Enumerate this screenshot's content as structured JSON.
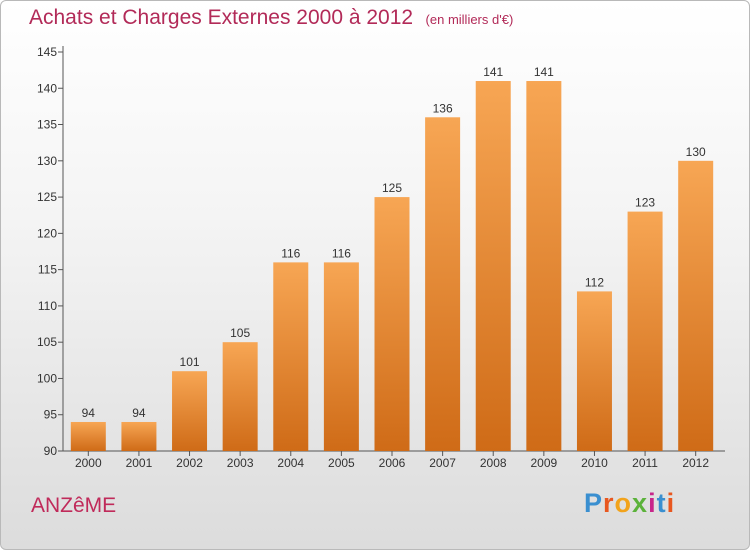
{
  "header": {
    "title": "Achats et Charges Externes 2000 à 2012",
    "unit": "(en milliers d'€)"
  },
  "commune": "ANZêME",
  "logo": {
    "letters": [
      "P",
      "r",
      "o",
      "x",
      "i",
      "t",
      "i"
    ],
    "colors": [
      "#3a8fd0",
      "#e8571f",
      "#f2a31b",
      "#5bb23a",
      "#c8258a",
      "#3a8fd0",
      "#e8571f"
    ]
  },
  "colors": {
    "bar_light": "#f7a654",
    "bar_dark": "#cf6b17",
    "title": "#b22a58"
  },
  "chart_data": {
    "type": "bar",
    "categories": [
      "2000",
      "2001",
      "2002",
      "2003",
      "2004",
      "2005",
      "2006",
      "2007",
      "2008",
      "2009",
      "2010",
      "2011",
      "2012"
    ],
    "values": [
      94,
      94,
      101,
      105,
      116,
      116,
      125,
      136,
      141,
      141,
      112,
      123,
      130
    ],
    "ylim": [
      90,
      145
    ],
    "yticks": [
      90,
      95,
      100,
      105,
      110,
      115,
      120,
      125,
      130,
      135,
      140,
      145
    ],
    "grid": false,
    "title": "Achats et Charges Externes 2000 à 2012",
    "xlabel": "",
    "ylabel": ""
  }
}
